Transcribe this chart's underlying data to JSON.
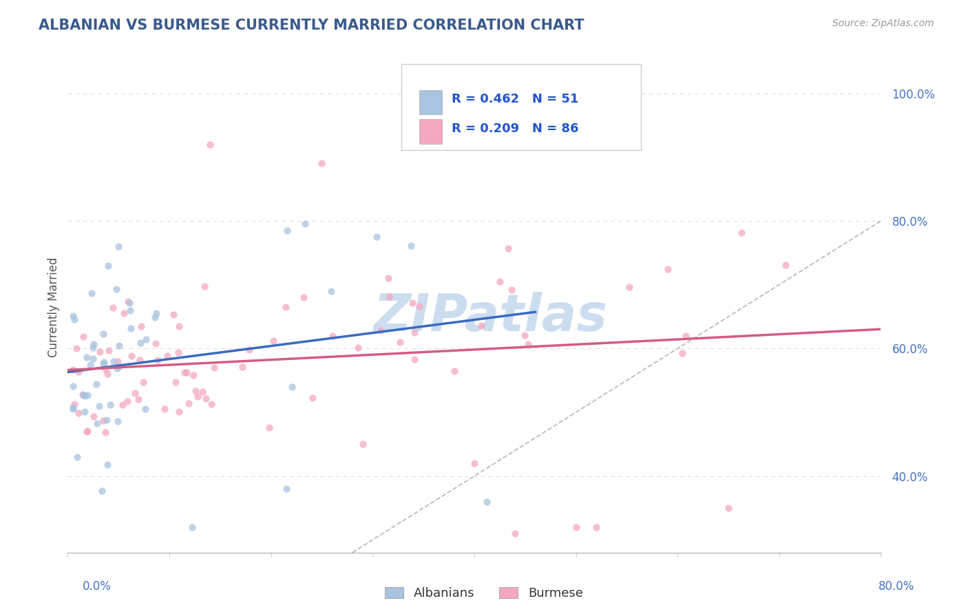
{
  "title": "ALBANIAN VS BURMESE CURRENTLY MARRIED CORRELATION CHART",
  "source": "Source: ZipAtlas.com",
  "ylabel": "Currently Married",
  "xmin": 0.0,
  "xmax": 0.8,
  "ymin": 0.28,
  "ymax": 1.05,
  "albanian_R": 0.462,
  "albanian_N": 51,
  "burmese_R": 0.209,
  "burmese_N": 86,
  "albanian_color": "#a8c4e0",
  "burmese_color": "#f4a8c0",
  "albanian_line_color": "#3a6abf",
  "burmese_line_color": "#d45c80",
  "ref_line_color": "#aaaaaa",
  "title_color": "#3a5a8c",
  "legend_R_color": "#2255cc",
  "watermark_color": "#ccddf0",
  "background_color": "#ffffff",
  "grid_color": "#dddddd",
  "ytick_labels": [
    "40.0%",
    "60.0%",
    "80.0%",
    "100.0%"
  ],
  "ytick_values": [
    0.4,
    0.6,
    0.8,
    1.0
  ],
  "marker_size": 55,
  "alpha": 0.75
}
